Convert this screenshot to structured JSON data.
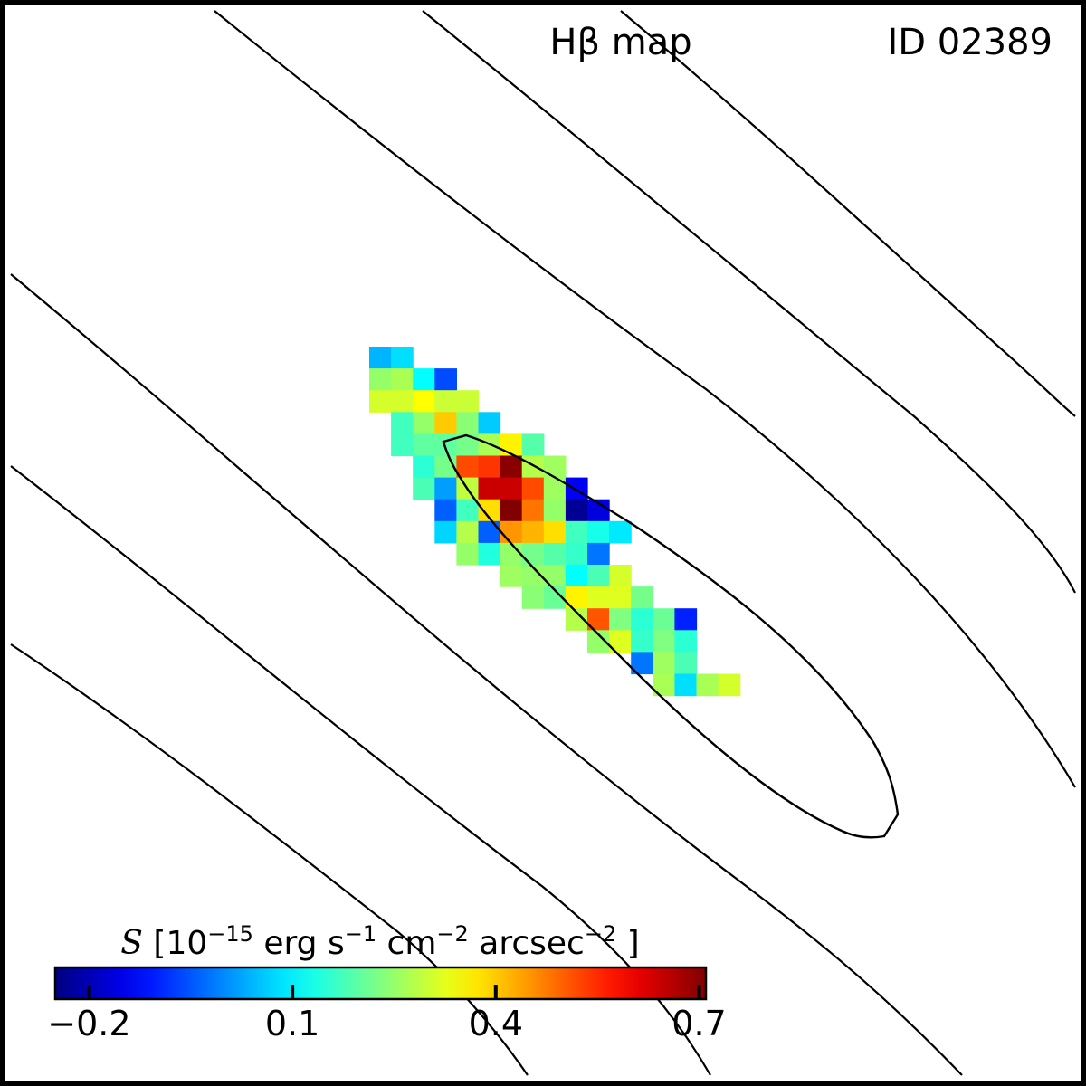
{
  "chart_data": {
    "type": "heatmap",
    "title": "Hβ map",
    "object_id": "ID 02389",
    "colorbar": {
      "label": "S [10^-15 erg s^-1 cm^-2 arcsec^-2]",
      "label_parts": {
        "symbol": "S",
        "open": "[",
        "base": "10",
        "exp": "−15",
        "unit1": "erg s",
        "exp1": "−1",
        "unit2": "cm",
        "exp2": "−2",
        "unit3": "arcsec",
        "exp3": "−2",
        "close": "]"
      },
      "colormap": "jet",
      "vmin": -0.25,
      "vmax": 0.71,
      "ticks": [
        -0.2,
        0.1,
        0.4,
        0.7
      ],
      "tick_labels": [
        "−0.2",
        "0.1",
        "0.4",
        "0.7"
      ]
    },
    "grid": {
      "cell_size": 1,
      "rows": [
        {
          "row": 0,
          "col_start": 0,
          "values": [
            0.04,
            0.08
          ]
        },
        {
          "row": 1,
          "col_start": 0,
          "values": [
            0.25,
            0.27,
            0.11,
            -0.06
          ]
        },
        {
          "row": 2,
          "col_start": 0,
          "values": [
            0.31,
            0.31,
            0.35,
            0.3,
            0.3
          ]
        },
        {
          "row": 3,
          "col_start": 1,
          "values": [
            0.17,
            0.25,
            0.4,
            0.24,
            0.06
          ]
        },
        {
          "row": 4,
          "col_start": 1,
          "values": [
            0.17,
            0.2,
            0.2,
            0.22,
            0.27,
            0.36,
            0.19
          ]
        },
        {
          "row": 5,
          "col_start": 2,
          "values": [
            0.15,
            0.22,
            0.52,
            0.54,
            0.7,
            0.28,
            0.26
          ]
        },
        {
          "row": 6,
          "col_start": 2,
          "values": [
            0.18,
            0.02,
            0.29,
            0.64,
            0.64,
            0.52,
            0.26,
            -0.14
          ]
        },
        {
          "row": 7,
          "col_start": 3,
          "values": [
            -0.04,
            0.17,
            0.38,
            0.71,
            0.48,
            0.25,
            -0.23,
            -0.16
          ]
        },
        {
          "row": 8,
          "col_start": 3,
          "values": [
            0.07,
            0.28,
            -0.04,
            0.45,
            0.42,
            0.38,
            0.17,
            0.13,
            0.09
          ]
        },
        {
          "row": 9,
          "col_start": 4,
          "values": [
            0.25,
            0.14,
            0.25,
            0.22,
            0.19,
            0.16,
            -0.02
          ]
        },
        {
          "row": 10,
          "col_start": 6,
          "values": [
            0.26,
            0.25,
            0.25,
            0.11,
            0.18,
            0.31
          ]
        },
        {
          "row": 11,
          "col_start": 7,
          "values": [
            0.24,
            0.21,
            0.36,
            0.32,
            0.32,
            0.22
          ]
        },
        {
          "row": 12,
          "col_start": 9,
          "values": [
            0.28,
            0.51,
            0.23,
            0.15,
            0.21,
            -0.1
          ]
        },
        {
          "row": 13,
          "col_start": 10,
          "values": [
            0.25,
            0.32,
            0.16,
            0.23,
            0.15
          ]
        },
        {
          "row": 14,
          "col_start": 12,
          "values": [
            -0.02,
            0.26,
            0.18
          ]
        },
        {
          "row": 15,
          "col_start": 13,
          "values": [
            0.27,
            0.08,
            0.27,
            0.31
          ]
        }
      ]
    },
    "contours": 6
  }
}
